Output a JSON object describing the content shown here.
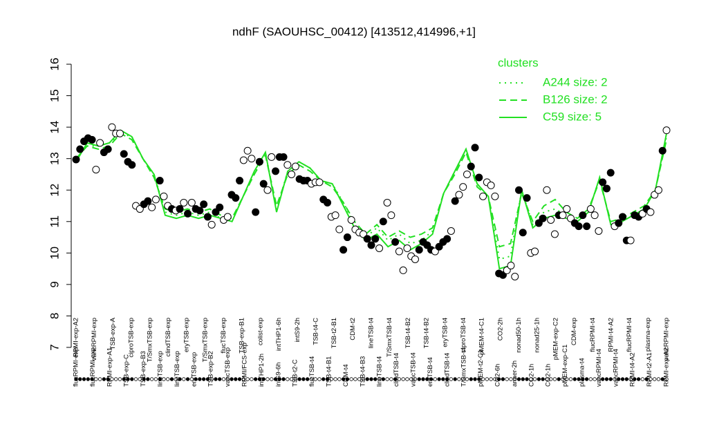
{
  "chart_data": {
    "type": "line",
    "title": "ndhF (SAOUHSC_00412) [413512,414996,+1]",
    "ylim": [
      7,
      16
    ],
    "yticks": [
      7,
      8,
      9,
      10,
      11,
      12,
      13,
      14,
      15,
      16
    ],
    "legend_title": "clusters",
    "legend": "top-right",
    "series": [
      {
        "name": "A244 size: 2",
        "color": "#22e022",
        "linestyle": "dotted",
        "values": [
          13.0,
          13.4,
          13.4,
          13.5,
          13.8,
          13.7,
          13.0,
          12.5,
          11.3,
          11.2,
          11.3,
          11.2,
          11.3,
          11.1,
          11.0,
          11.8,
          12.5,
          13.2,
          11.4,
          12.6,
          12.9,
          12.7,
          12.3,
          12.2,
          11.6,
          10.9,
          10.5,
          10.8,
          10.4,
          10.6,
          10.3,
          10.4,
          10.7,
          11.9,
          12.6,
          13.3,
          12.2,
          11.8,
          9.8,
          9.9,
          12.0,
          10.9,
          11.3,
          11.4,
          11.2,
          11.0,
          11.3,
          12.4,
          10.9,
          11.0,
          11.2,
          11.4,
          12.0,
          13.7
        ]
      },
      {
        "name": "B126 size: 2",
        "color": "#22e022",
        "linestyle": "dashed",
        "values": [
          13.0,
          13.4,
          13.3,
          13.4,
          13.8,
          13.6,
          13.0,
          12.4,
          11.4,
          11.3,
          11.4,
          11.3,
          11.4,
          11.2,
          11.1,
          11.8,
          12.5,
          13.1,
          11.5,
          12.5,
          12.8,
          12.6,
          12.3,
          12.1,
          11.6,
          11.0,
          10.6,
          10.9,
          10.5,
          10.7,
          10.5,
          10.6,
          10.8,
          11.9,
          12.5,
          13.2,
          12.1,
          11.8,
          10.2,
          10.3,
          11.9,
          11.0,
          11.5,
          11.7,
          11.3,
          11.1,
          11.4,
          12.3,
          11.0,
          11.1,
          11.3,
          11.5,
          12.0,
          13.6
        ]
      },
      {
        "name": "C59 size: 5",
        "color": "#22e022",
        "linestyle": "solid",
        "values": [
          12.9,
          13.5,
          13.4,
          13.5,
          13.9,
          13.7,
          13.0,
          12.5,
          11.2,
          11.1,
          11.2,
          11.1,
          11.2,
          11.1,
          11.0,
          11.8,
          12.6,
          13.2,
          11.3,
          12.6,
          12.9,
          12.7,
          12.3,
          12.2,
          11.5,
          10.8,
          10.4,
          10.6,
          10.2,
          10.4,
          10.1,
          10.3,
          10.6,
          11.9,
          12.6,
          13.3,
          12.2,
          11.8,
          9.5,
          9.6,
          12.0,
          10.8,
          11.1,
          11.2,
          11.1,
          11.0,
          11.3,
          12.4,
          10.9,
          11.0,
          11.2,
          11.4,
          12.0,
          13.8
        ]
      }
    ],
    "points": {
      "values": [
        12.97,
        13.3,
        13.55,
        13.65,
        13.6,
        12.65,
        13.5,
        13.2,
        13.3,
        14.0,
        13.8,
        13.8,
        13.15,
        12.9,
        12.8,
        11.5,
        11.4,
        11.55,
        11.65,
        11.45,
        11.7,
        12.3,
        11.8,
        11.5,
        11.4,
        11.35,
        11.4,
        11.6,
        11.25,
        11.6,
        11.4,
        11.35,
        11.55,
        11.15,
        10.9,
        11.3,
        11.45,
        11.05,
        11.15,
        11.85,
        11.75,
        12.3,
        12.95,
        13.25,
        13.0,
        11.3,
        12.9,
        12.2,
        12.0,
        13.05,
        12.6,
        13.05,
        13.05,
        12.8,
        12.5,
        12.75,
        12.35,
        12.3,
        12.3,
        12.2,
        12.25,
        12.25,
        11.7,
        11.6,
        11.15,
        11.2,
        10.75,
        10.1,
        10.5,
        11.05,
        10.75,
        10.65,
        10.6,
        10.45,
        10.25,
        10.45,
        10.15,
        11.0,
        11.6,
        11.2,
        10.35,
        10.05,
        9.45,
        10.15,
        9.9,
        9.8,
        10.1,
        10.35,
        10.25,
        10.1,
        10.05,
        10.2,
        10.35,
        10.45,
        10.7,
        11.65,
        11.85,
        12.1,
        12.5,
        12.75,
        13.35,
        12.4,
        11.8,
        12.25,
        12.15,
        11.8,
        9.35,
        9.3,
        9.45,
        9.6,
        9.25,
        12.0,
        10.65,
        11.75,
        10.0,
        10.05,
        10.95,
        11.1,
        12.0,
        11.05,
        10.6,
        11.2,
        11.2,
        11.4,
        11.1,
        10.95,
        10.85,
        11.2,
        10.85,
        11.4,
        11.2,
        10.7,
        12.25,
        12.05,
        12.55,
        10.85,
        10.95,
        11.15,
        10.4,
        10.4,
        11.2,
        11.15,
        11.25,
        11.4,
        11.3,
        11.85,
        12.0,
        13.25,
        13.9
      ],
      "filled": [
        true,
        true,
        true,
        true,
        true,
        false,
        false,
        true,
        true,
        false,
        false,
        false,
        true,
        true,
        true,
        false,
        false,
        true,
        true,
        false,
        false,
        true,
        false,
        false,
        true,
        false,
        true,
        false,
        true,
        false,
        true,
        true,
        true,
        true,
        false,
        true,
        true,
        false,
        false,
        true,
        true,
        true,
        false,
        false,
        false,
        true,
        true,
        true,
        false,
        false,
        true,
        true,
        true,
        false,
        false,
        false,
        true,
        true,
        true,
        false,
        false,
        false,
        true,
        true,
        false,
        false,
        false,
        true,
        true,
        false,
        false,
        false,
        false,
        true,
        true,
        true,
        false,
        true,
        false,
        false,
        true,
        false,
        false,
        false,
        false,
        false,
        true,
        true,
        true,
        true,
        false,
        true,
        true,
        true,
        false,
        true,
        false,
        false,
        false,
        true,
        true,
        true,
        false,
        false,
        false,
        false,
        true,
        true,
        false,
        false,
        false,
        true,
        true,
        true,
        false,
        false,
        true,
        true,
        false,
        false,
        false,
        true,
        false,
        false,
        false,
        true,
        true,
        true,
        true,
        false,
        false,
        false,
        true,
        true,
        true,
        false,
        true,
        true,
        true,
        false,
        true,
        true,
        false,
        true,
        false,
        false,
        false,
        true,
        false
      ]
    },
    "top_labels": [
      "RPMI-exp-A2",
      "vancRPMI-exp",
      "TSB-exp-A",
      "ciproTSB-exp",
      "T/SmxTSB-exp",
      "clindTSB-exp",
      "eryTSB-exp",
      "T/SmxTSB-exp",
      "flucTSB-exp",
      "TSB-exp-B1",
      "colist-exp",
      "intTHP1-6h",
      "intS9-2h",
      "TSB-t4-C",
      "TSB-t2-B1",
      "CDM-t2",
      "lineTSB-t4",
      "T/SmxTSB-t4",
      "TSB-t4-B2",
      "TSB-t4-B2",
      "eryTSB-t4",
      "ciproTSB-t4",
      "pMEM-t4-C1",
      "CO2-2h",
      "nonad50-1h",
      "nonad25-1h",
      "pMEM-exp-C2",
      "CDM-exp",
      "flucRPMI-t4",
      "RPMI-t4-A2",
      "flucRPMI-t4",
      "plasma-exp",
      "vancRPMI-exp"
    ],
    "bottom_labels": [
      "flucRPMI-exp",
      "flucRPMI-exp",
      "RPMI-exp-A1",
      "TSB-exp-C",
      "TSB-exp-B3",
      "lineTSB-exp",
      "lineTSB-exp",
      "eryTSB-exp",
      "TSB-exp-B2",
      "vancTSB-exp",
      "RPMI/FCS-exp",
      "intTHP1-2h",
      "intS9-6h",
      "TSB-t2-C",
      "flucTSB-t4",
      "TSB-t4-B1",
      "CDM-t4",
      "TSB-t4-B3",
      "lineTSB-t4",
      "clindTSB-t4",
      "vancTSB-t4",
      "eryTSB-t4",
      "clindTSB-t4",
      "T/SmxTSB-t4",
      "pMEM-t2-C1",
      "CO2-6h",
      "anaer-2h",
      "CO2-1h",
      "CO2-1h",
      "pMEM-exp-C1",
      "plasma-t4",
      "vancRPMI-t4",
      "vancRPMI-t4",
      "RPMI-t4-A2",
      "RPMI-t2-A1",
      "RPMI-exp-A2"
    ]
  }
}
